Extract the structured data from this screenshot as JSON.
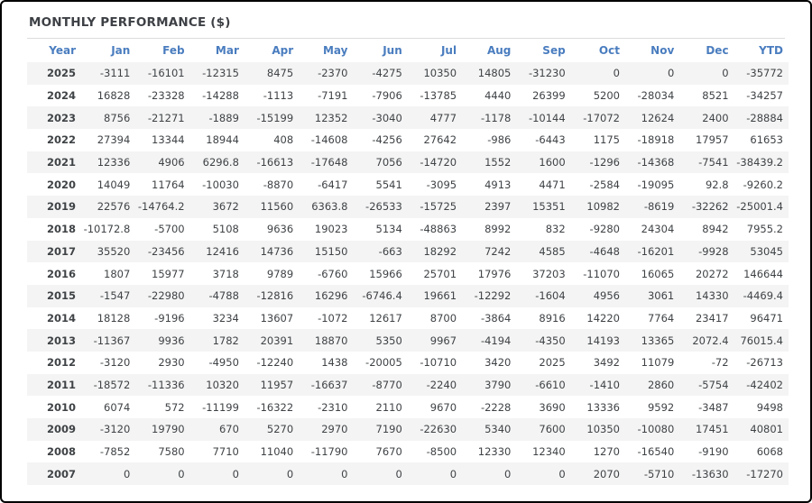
{
  "header": {
    "title": "MONTHLY PERFORMANCE ($)"
  },
  "colors": {
    "frame_border": "#000000",
    "title_text": "#3d4045",
    "column_header_text": "#4a7dbf",
    "negative_value": "#fb6b6b",
    "positive_value": "#3f4346",
    "year_text": "#333333",
    "row_stripe": "#f4f4f4",
    "divider": "#dcdcdc",
    "background": "#ffffff"
  },
  "chart_data": {
    "type": "table",
    "title": "MONTHLY PERFORMANCE ($)",
    "columns": [
      "Year",
      "Jan",
      "Feb",
      "Mar",
      "Apr",
      "May",
      "Jun",
      "Jul",
      "Aug",
      "Sep",
      "Oct",
      "Nov",
      "Dec",
      "YTD"
    ],
    "rows": [
      {
        "year": "2025",
        "values": [
          -3111,
          -16101,
          -12315,
          8475,
          -2370,
          -4275,
          10350,
          14805,
          -31230,
          0,
          0,
          0,
          -35772
        ]
      },
      {
        "year": "2024",
        "values": [
          16828,
          -23328,
          -14288,
          -1113,
          -7191,
          -7906,
          -13785,
          4440,
          26399,
          5200,
          -28034,
          8521,
          -34257
        ]
      },
      {
        "year": "2023",
        "values": [
          8756,
          -21271,
          -1889,
          -15199,
          12352,
          -3040,
          4777,
          -1178,
          -10144,
          -17072,
          12624,
          2400,
          -28884
        ]
      },
      {
        "year": "2022",
        "values": [
          27394,
          13344,
          18944,
          408,
          -14608,
          -4256,
          27642,
          -986,
          -6443,
          1175,
          -18918,
          17957,
          61653
        ]
      },
      {
        "year": "2021",
        "values": [
          12336,
          4906,
          6296.8,
          -16613,
          -17648,
          7056,
          -14720,
          1552,
          1600,
          -1296,
          -14368,
          -7541,
          -38439.2
        ]
      },
      {
        "year": "2020",
        "values": [
          14049,
          11764,
          -10030,
          -8870,
          -6417,
          5541,
          -3095,
          4913,
          4471,
          -2584,
          -19095,
          92.8,
          -9260.2
        ]
      },
      {
        "year": "2019",
        "values": [
          22576,
          -14764.2,
          3672,
          11560,
          6363.8,
          -26533,
          -15725,
          2397,
          15351,
          10982,
          -8619,
          -32262,
          -25001.4
        ]
      },
      {
        "year": "2018",
        "values": [
          -10172.8,
          -5700,
          5108,
          9636,
          19023,
          5134,
          -48863,
          8992,
          832,
          -9280,
          24304,
          8942,
          7955.2
        ]
      },
      {
        "year": "2017",
        "values": [
          35520,
          -23456,
          12416,
          14736,
          15150,
          -663,
          18292,
          7242,
          4585,
          -4648,
          -16201,
          -9928,
          53045
        ]
      },
      {
        "year": "2016",
        "values": [
          1807,
          15977,
          3718,
          9789,
          -6760,
          15966,
          25701,
          17976,
          37203,
          -11070,
          16065,
          20272,
          146644
        ]
      },
      {
        "year": "2015",
        "values": [
          -1547,
          -22980,
          -4788,
          -12816,
          16296,
          -6746.4,
          19661,
          -12292,
          -1604,
          4956,
          3061,
          14330,
          -4469.4
        ]
      },
      {
        "year": "2014",
        "values": [
          18128,
          -9196,
          3234,
          13607,
          -1072,
          12617,
          8700,
          -3864,
          8916,
          14220,
          7764,
          23417,
          96471
        ]
      },
      {
        "year": "2013",
        "values": [
          -11367,
          9936,
          1782,
          20391,
          18870,
          5350,
          9967,
          -4194,
          -4350,
          14193,
          13365,
          2072.4,
          76015.4
        ]
      },
      {
        "year": "2012",
        "values": [
          -3120,
          2930,
          -4950,
          -12240,
          1438,
          -20005,
          -10710,
          3420,
          2025,
          3492,
          11079,
          -72,
          -26713
        ]
      },
      {
        "year": "2011",
        "values": [
          -18572,
          -11336,
          10320,
          11957,
          -16637,
          -8770,
          -2240,
          3790,
          -6610,
          -1410,
          2860,
          -5754,
          -42402
        ]
      },
      {
        "year": "2010",
        "values": [
          6074,
          572,
          -11199,
          -16322,
          -2310,
          2110,
          9670,
          -2228,
          3690,
          13336,
          9592,
          -3487,
          9498
        ]
      },
      {
        "year": "2009",
        "values": [
          -3120,
          19790,
          670,
          5270,
          2970,
          7190,
          -22630,
          5340,
          7600,
          10350,
          -10080,
          17451,
          40801
        ]
      },
      {
        "year": "2008",
        "values": [
          -7852,
          7580,
          7710,
          11040,
          -11790,
          7670,
          -8500,
          12330,
          12340,
          1270,
          -16540,
          -9190,
          6068
        ]
      },
      {
        "year": "2007",
        "values": [
          0,
          0,
          0,
          0,
          0,
          0,
          0,
          0,
          0,
          2070,
          -5710,
          -13630,
          -17270
        ]
      }
    ]
  }
}
